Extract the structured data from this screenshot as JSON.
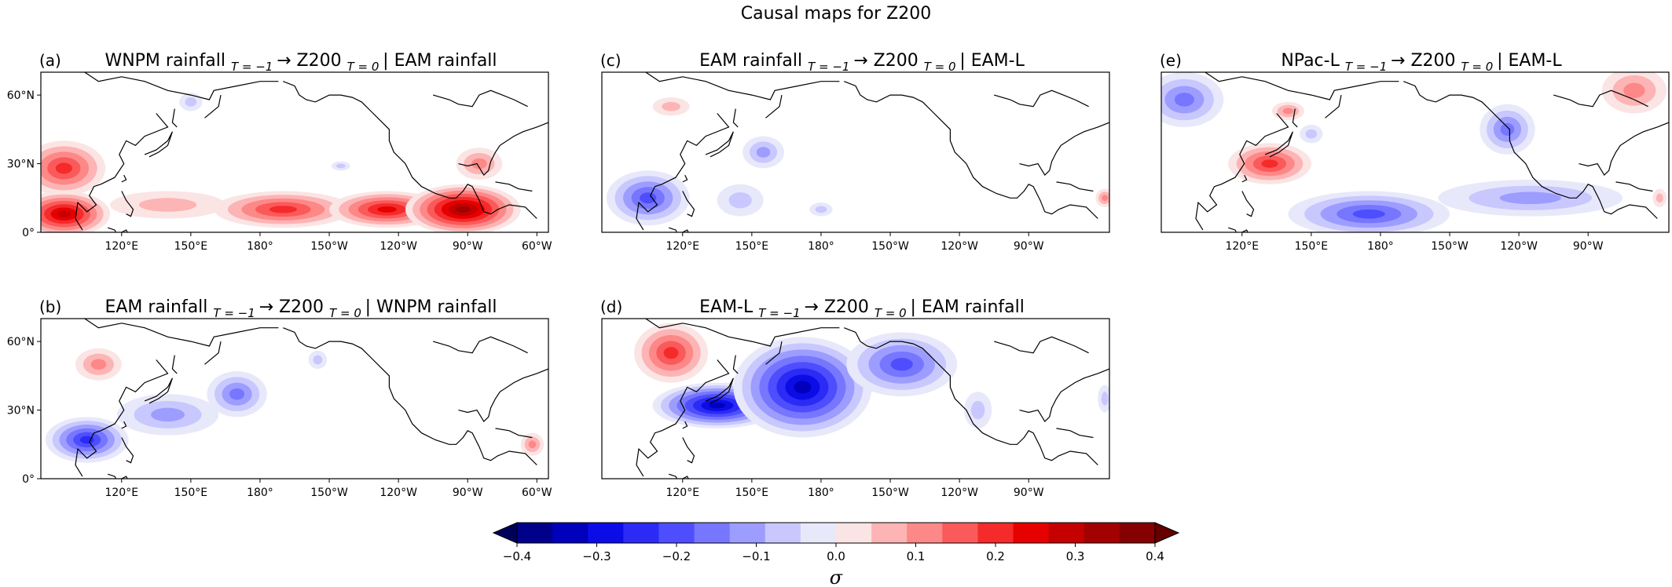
{
  "figure": {
    "title": "Causal maps for Z200"
  },
  "panels": [
    {
      "id": "a",
      "tag": "(a)",
      "title_left": "WNPM rainfall",
      "sub1": "T = −1",
      "arrow": "→",
      "title_mid": "Z200",
      "sub2": "T = 0",
      "title_right": "| EAM rainfall",
      "lat_labels": [
        "60°N",
        "30°N",
        "0°"
      ],
      "lon_labels": [
        "120°E",
        "150°E",
        "180°",
        "150°W",
        "120°W",
        "90°W",
        "60°W"
      ],
      "anomalies": [
        {
          "lon": 95,
          "lat": 28,
          "value": 0.2,
          "rx": 18,
          "ry": 12
        },
        {
          "lon": 95,
          "lat": 8,
          "value": 0.25,
          "rx": 20,
          "ry": 10
        },
        {
          "lon": 140,
          "lat": 12,
          "value": 0.08,
          "rx": 25,
          "ry": 6
        },
        {
          "lon": 190,
          "lat": 10,
          "value": 0.2,
          "rx": 30,
          "ry": 8
        },
        {
          "lon": 235,
          "lat": 10,
          "value": 0.22,
          "rx": 25,
          "ry": 8
        },
        {
          "lon": 268,
          "lat": 10,
          "value": 0.28,
          "rx": 25,
          "ry": 11
        },
        {
          "lon": 275,
          "lat": 30,
          "value": 0.12,
          "rx": 10,
          "ry": 7
        },
        {
          "lon": 150,
          "lat": 57,
          "value": -0.05,
          "rx": 5,
          "ry": 4
        },
        {
          "lon": 215,
          "lat": 29,
          "value": -0.05,
          "rx": 4,
          "ry": 2
        }
      ]
    },
    {
      "id": "b",
      "tag": "(b)",
      "title_left": "EAM rainfall",
      "sub1": "T = −1",
      "arrow": "→",
      "title_mid": "Z200",
      "sub2": "T = 0",
      "title_right": "| WNPM rainfall",
      "lat_labels": [
        "60°N",
        "30°N",
        "0°"
      ],
      "lon_labels": [
        "120°E",
        "150°E",
        "180°",
        "150°W",
        "120°W",
        "90°W",
        "60°W"
      ],
      "anomalies": [
        {
          "lon": 110,
          "lat": 50,
          "value": 0.1,
          "rx": 10,
          "ry": 7
        },
        {
          "lon": 105,
          "lat": 17,
          "value": -0.22,
          "rx": 18,
          "ry": 10
        },
        {
          "lon": 140,
          "lat": 28,
          "value": -0.12,
          "rx": 22,
          "ry": 9
        },
        {
          "lon": 170,
          "lat": 37,
          "value": -0.15,
          "rx": 13,
          "ry": 10
        },
        {
          "lon": 205,
          "lat": 52,
          "value": -0.05,
          "rx": 4,
          "ry": 4
        },
        {
          "lon": 298,
          "lat": 15,
          "value": 0.12,
          "rx": 5,
          "ry": 5
        }
      ]
    },
    {
      "id": "c",
      "tag": "(c)",
      "title_left": "EAM rainfall",
      "sub1": "T = −1",
      "arrow": "→",
      "title_mid": "Z200",
      "sub2": "T = 0",
      "title_right": "| EAM-L",
      "lat_labels": [],
      "lon_labels": [
        "120°E",
        "150°E",
        "180°",
        "150°W",
        "120°W",
        "90°W"
      ],
      "anomalies": [
        {
          "lon": 115,
          "lat": 55,
          "value": 0.08,
          "rx": 8,
          "ry": 4
        },
        {
          "lon": 105,
          "lat": 15,
          "value": -0.2,
          "rx": 18,
          "ry": 12
        },
        {
          "lon": 145,
          "lat": 14,
          "value": -0.08,
          "rx": 10,
          "ry": 7
        },
        {
          "lon": 155,
          "lat": 35,
          "value": -0.1,
          "rx": 9,
          "ry": 7
        },
        {
          "lon": 180,
          "lat": 10,
          "value": -0.05,
          "rx": 5,
          "ry": 3
        },
        {
          "lon": 303,
          "lat": 15,
          "value": 0.1,
          "rx": 4,
          "ry": 4
        }
      ]
    },
    {
      "id": "d",
      "tag": "(d)",
      "title_left": "EAM-L",
      "sub1": "T = −1",
      "arrow": "→",
      "title_mid": "Z200",
      "sub2": "T = 0",
      "title_right": "| EAM rainfall",
      "lat_labels": [],
      "lon_labels": [
        "120°E",
        "150°E",
        "180°",
        "150°W",
        "120°W",
        "90°W"
      ],
      "anomalies": [
        {
          "lon": 115,
          "lat": 55,
          "value": 0.2,
          "rx": 16,
          "ry": 13
        },
        {
          "lon": 135,
          "lat": 32,
          "value": -0.3,
          "rx": 28,
          "ry": 10
        },
        {
          "lon": 172,
          "lat": 40,
          "value": -0.32,
          "rx": 30,
          "ry": 22
        },
        {
          "lon": 215,
          "lat": 50,
          "value": -0.18,
          "rx": 24,
          "ry": 14
        },
        {
          "lon": 248,
          "lat": 30,
          "value": -0.08,
          "rx": 6,
          "ry": 8
        },
        {
          "lon": 303,
          "lat": 35,
          "value": -0.05,
          "rx": 3,
          "ry": 6
        }
      ]
    },
    {
      "id": "e",
      "tag": "(e)",
      "title_left": "NPac-L",
      "sub1": "T = −1",
      "arrow": "→",
      "title_mid": "Z200",
      "sub2": "T = 0",
      "title_right": "| EAM-L",
      "lat_labels": [],
      "lon_labels": [
        "120°E",
        "150°E",
        "180°",
        "150°W",
        "120°W",
        "90°W"
      ],
      "anomalies": [
        {
          "lon": 95,
          "lat": 58,
          "value": -0.15,
          "rx": 17,
          "ry": 12
        },
        {
          "lon": 132,
          "lat": 30,
          "value": 0.18,
          "rx": 18,
          "ry": 9
        },
        {
          "lon": 140,
          "lat": 53,
          "value": 0.1,
          "rx": 7,
          "ry": 4
        },
        {
          "lon": 150,
          "lat": 43,
          "value": -0.08,
          "rx": 5,
          "ry": 4
        },
        {
          "lon": 235,
          "lat": 45,
          "value": -0.15,
          "rx": 12,
          "ry": 11
        },
        {
          "lon": 175,
          "lat": 8,
          "value": -0.2,
          "rx": 35,
          "ry": 10
        },
        {
          "lon": 245,
          "lat": 15,
          "value": -0.1,
          "rx": 40,
          "ry": 8
        },
        {
          "lon": 290,
          "lat": 62,
          "value": 0.1,
          "rx": 14,
          "ry": 10
        },
        {
          "lon": 301,
          "lat": 15,
          "value": 0.05,
          "rx": 3,
          "ry": 4
        }
      ]
    }
  ],
  "colorbar": {
    "ticks": [
      "−0.4",
      "−0.3",
      "−0.2",
      "−0.1",
      "0.0",
      "0.1",
      "0.2",
      "0.3",
      "0.4"
    ],
    "label": "σ",
    "levels": [
      -0.4,
      0.4
    ],
    "colors": [
      "#00005b",
      "#00008a",
      "#0000bd",
      "#0c0ce6",
      "#2b2bf5",
      "#4e4eff",
      "#7676ff",
      "#9d9dff",
      "#c8c8ff",
      "#e8e8fb",
      "#fbe4e4",
      "#fdb4b4",
      "#fd8888",
      "#fb5a5a",
      "#f52a2a",
      "#e60000",
      "#c40000",
      "#a30000",
      "#850000",
      "#640000"
    ]
  },
  "colors": {
    "negative_max": "#00005b",
    "neutral": "#ffffff",
    "positive_max": "#640000",
    "coast": "#000000"
  }
}
